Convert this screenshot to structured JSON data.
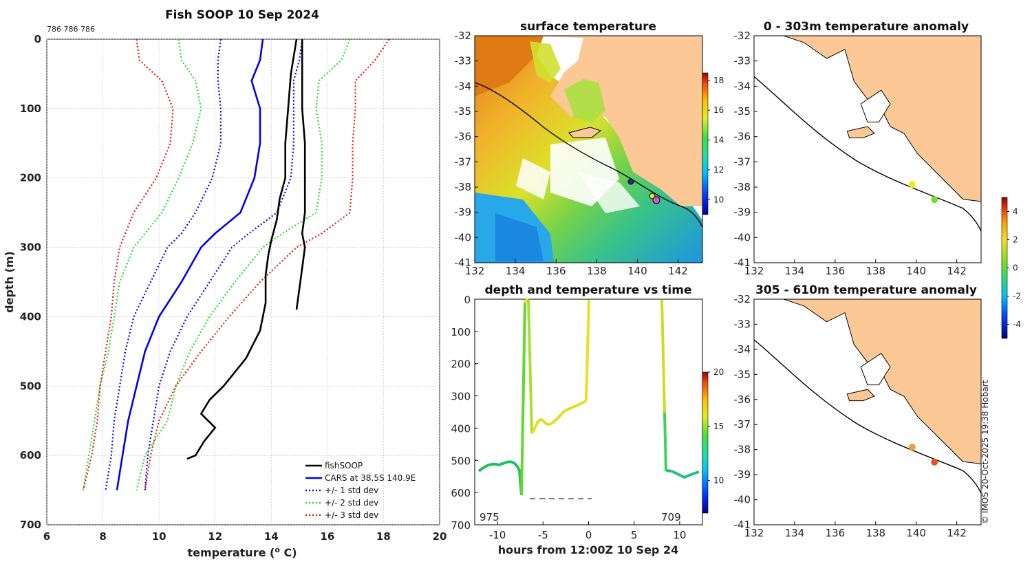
{
  "chart_data": [
    {
      "type": "line",
      "title": "Fish SOOP 10 Sep 2024",
      "corner_label": "786 786 786",
      "xlabel": "temperature (",
      "xlabel_sup": "o",
      "xlabel_end": " C)",
      "ylabel": "depth (m)",
      "xlim": [
        6,
        20
      ],
      "ylim": [
        0,
        700
      ],
      "xticks": [
        "6",
        "8",
        "10",
        "12",
        "14",
        "16",
        "18",
        "20"
      ],
      "yticks": [
        "0",
        "100",
        "200",
        "300",
        "400",
        "500",
        "600",
        "700"
      ],
      "legend": [
        {
          "label": "fishSOOP",
          "color": "#000000",
          "style": "solid"
        },
        {
          "label": "CARS at 38.5S 140.9E",
          "color": "#0000ee",
          "style": "solid"
        },
        {
          "label": "+/- 1 std dev",
          "color": "#0000ee",
          "style": "dotted"
        },
        {
          "label": "+/- 2 std dev",
          "color": "#22dd22",
          "style": "dotted"
        },
        {
          "label": "+/- 3 std dev",
          "color": "#ee1111",
          "style": "dotted"
        }
      ],
      "series": [
        {
          "name": "CARS",
          "color": "#0000ee",
          "style": "solid",
          "depth": [
            0,
            30,
            60,
            100,
            150,
            200,
            250,
            280,
            300,
            350,
            400,
            450,
            500,
            550,
            600,
            650
          ],
          "temp": [
            13.7,
            13.6,
            13.3,
            13.6,
            13.6,
            13.4,
            12.9,
            12.0,
            11.5,
            10.8,
            10.0,
            9.5,
            9.2,
            8.9,
            8.7,
            8.5
          ]
        },
        {
          "name": "+1 std",
          "color": "#0000ee",
          "style": "dotted",
          "depth": [
            0,
            30,
            60,
            100,
            150,
            200,
            250,
            280,
            300,
            350,
            400,
            450,
            500,
            550,
            600,
            650
          ],
          "temp": [
            15.1,
            15.0,
            14.8,
            14.8,
            14.8,
            14.7,
            14.2,
            13.2,
            12.6,
            11.8,
            11.0,
            10.4,
            10.0,
            9.8,
            9.6,
            9.5
          ]
        },
        {
          "name": "-1 std",
          "color": "#0000ee",
          "style": "dotted",
          "depth": [
            0,
            30,
            60,
            100,
            150,
            200,
            250,
            280,
            300,
            350,
            400,
            450,
            500,
            550,
            600,
            650
          ],
          "temp": [
            12.2,
            12.1,
            12.1,
            12.2,
            12.2,
            11.9,
            11.3,
            10.8,
            10.3,
            9.7,
            9.1,
            8.8,
            8.6,
            8.4,
            8.3,
            8.1
          ]
        },
        {
          "name": "+2 std",
          "color": "#22dd22",
          "style": "dotted",
          "depth": [
            0,
            30,
            60,
            100,
            150,
            200,
            250,
            280,
            300,
            350,
            400,
            450,
            500,
            550,
            600,
            650
          ],
          "temp": [
            16.8,
            16.5,
            15.7,
            15.6,
            15.8,
            15.8,
            15.6,
            14.4,
            13.7,
            12.7,
            11.8,
            11.1,
            10.6,
            10.3,
            9.5,
            9.2
          ]
        },
        {
          "name": "-2 std",
          "color": "#22dd22",
          "style": "dotted",
          "depth": [
            0,
            30,
            60,
            100,
            150,
            200,
            250,
            280,
            300,
            350,
            400,
            450,
            500,
            550,
            600,
            650
          ],
          "temp": [
            10.7,
            10.8,
            11.3,
            11.5,
            11.2,
            10.7,
            10.1,
            9.5,
            9.1,
            8.6,
            8.4,
            8.2,
            7.9,
            7.7,
            7.5,
            7.3
          ]
        },
        {
          "name": "+3 std",
          "color": "#ee1111",
          "style": "dotted",
          "depth": [
            0,
            30,
            60,
            100,
            150,
            200,
            250,
            280,
            300,
            350,
            400,
            450,
            500,
            550,
            600,
            650
          ],
          "temp": [
            18.2,
            17.7,
            17.0,
            17.0,
            16.9,
            16.9,
            16.8,
            15.8,
            14.9,
            13.6,
            12.5,
            11.5,
            10.6,
            10.0,
            9.7,
            9.5
          ]
        },
        {
          "name": "-3 std",
          "color": "#ee1111",
          "style": "dotted",
          "depth": [
            0,
            30,
            60,
            100,
            150,
            200,
            250,
            280,
            300,
            350,
            400,
            450,
            500,
            550,
            600,
            650
          ],
          "temp": [
            9.2,
            9.3,
            10.1,
            10.5,
            10.4,
            9.9,
            9.1,
            8.8,
            8.6,
            8.4,
            8.3,
            8.1,
            7.9,
            7.8,
            7.6,
            7.3
          ]
        },
        {
          "name": "fishSOOP",
          "color": "#000000",
          "style": "solid",
          "depth": [
            0,
            50,
            100,
            150,
            200,
            230,
            260,
            290,
            310,
            340,
            380,
            420,
            460,
            500,
            520,
            540,
            560,
            580,
            600,
            605
          ],
          "temp": [
            14.9,
            14.7,
            14.6,
            14.5,
            14.5,
            14.3,
            14.2,
            14.0,
            13.9,
            13.8,
            13.8,
            13.6,
            13.1,
            12.3,
            11.8,
            11.5,
            12.0,
            11.6,
            11.3,
            11.0
          ]
        },
        {
          "name": "fishSOOP 2",
          "color": "#000000",
          "style": "solid",
          "depth": [
            0,
            50,
            100,
            150,
            200,
            250,
            280,
            300,
            330,
            360,
            390
          ],
          "temp": [
            15.1,
            15.1,
            15.1,
            15.2,
            15.2,
            15.2,
            15.1,
            15.2,
            15.1,
            15.0,
            14.9
          ]
        }
      ]
    },
    {
      "type": "heatmap",
      "title": "surface temperature",
      "xticks": [
        "132",
        "134",
        "136",
        "138",
        "140",
        "142"
      ],
      "yticks": [
        "-32",
        "-33",
        "-34",
        "-35",
        "-36",
        "-37",
        "-38",
        "-39",
        "-40",
        "-41"
      ],
      "colorbar_ticks": [
        "10",
        "12",
        "14",
        "16",
        "18"
      ],
      "colorbar_range": [
        9,
        18.5
      ]
    },
    {
      "type": "heatmap",
      "title": "0 - 303m temperature anomaly",
      "xticks": [
        "132",
        "134",
        "136",
        "138",
        "140",
        "142"
      ],
      "yticks": [
        "-32",
        "-33",
        "-34",
        "-35",
        "-36",
        "-37",
        "-38",
        "-39",
        "-40",
        "-41"
      ],
      "points": [
        {
          "lon": 139.8,
          "lat": -37.9,
          "color": "#ecea18"
        },
        {
          "lon": 140.9,
          "lat": -38.5,
          "color": "#77e02a"
        }
      ]
    },
    {
      "type": "line",
      "title": "depth and temperature vs time",
      "xlabel": "hours from 12:00Z 10 Sep 24",
      "xticks": [
        "-10",
        "-5",
        "0",
        "5",
        "10"
      ],
      "yticks": [
        "0",
        "100",
        "200",
        "300",
        "400",
        "500",
        "600",
        "700"
      ],
      "xlim": [
        -12.5,
        12.5
      ],
      "ylim": [
        0,
        700
      ],
      "left_label": "975",
      "right_label": "709",
      "colorbar_ticks": [
        "10",
        "15",
        "20"
      ],
      "colorbar_range": [
        7,
        20
      ]
    },
    {
      "type": "heatmap",
      "title": "305 - 610m temperature anomaly",
      "xticks": [
        "132",
        "134",
        "136",
        "138",
        "140",
        "142"
      ],
      "yticks": [
        "-32",
        "-33",
        "-34",
        "-35",
        "-36",
        "-37",
        "-38",
        "-39",
        "-40",
        "-41"
      ],
      "points": [
        {
          "lon": 139.8,
          "lat": -37.9,
          "color": "#f0a22a"
        },
        {
          "lon": 140.9,
          "lat": -38.5,
          "color": "#e0581e"
        }
      ],
      "colorbar_ticks": [
        "-4",
        "-2",
        "0",
        "2",
        "4"
      ],
      "colorbar_range": [
        -5,
        5
      ]
    }
  ],
  "footer": "© IMOS 20-Oct-2025 19:38 Hobart"
}
